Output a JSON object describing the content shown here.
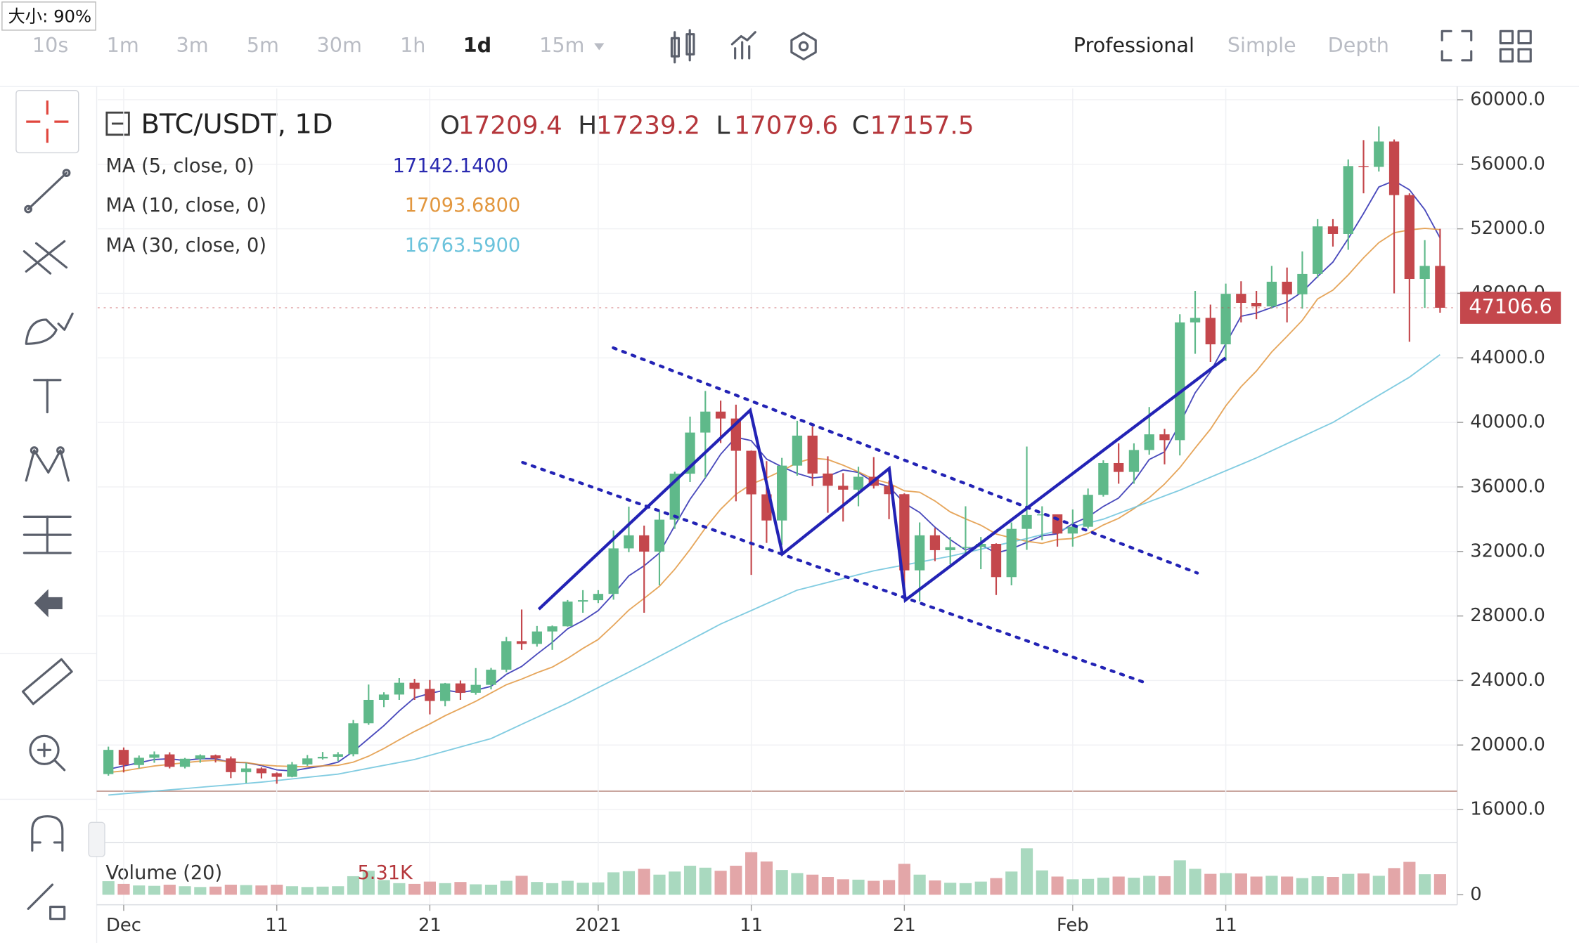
{
  "badge": "大小: 90%",
  "toolbar": {
    "intervals": [
      "10s",
      "1m",
      "3m",
      "5m",
      "30m",
      "1h",
      "1d",
      "15m"
    ],
    "active_interval_index": 6,
    "views": [
      "Professional",
      "Simple",
      "Depth"
    ],
    "active_view_index": 0
  },
  "chart_data": {
    "type": "candlestick",
    "title": "BTC/USDT, 1D",
    "ohlc_labels": [
      "O",
      "H",
      "L",
      "C"
    ],
    "ohlc_values": [
      17209.4,
      17239.2,
      17079.6,
      17157.5
    ],
    "up_color": "#5fb98a",
    "down_color": "#c4474c",
    "label_color": "#b5373c",
    "open": [
      18200,
      19700,
      18760,
      19210,
      19420,
      18650,
      19150,
      19360,
      19170,
      18320,
      18550,
      18250,
      18030,
      18800,
      19170,
      19270,
      19430,
      21350,
      22800,
      23130,
      23860,
      23480,
      22730,
      23820,
      23240,
      23730,
      24670,
      26440,
      26270,
      27040,
      27360,
      28890,
      28980,
      29370,
      32190,
      33000,
      31990,
      33970,
      36820,
      39370,
      40670,
      40240,
      38240,
      35540,
      33920,
      37320,
      39180,
      36830,
      36070,
      35830,
      36630,
      36070,
      35550,
      30830,
      33000,
      32080,
      32260,
      32280,
      32470,
      30410,
      33400,
      34260,
      34300,
      33110,
      33530,
      35510,
      37480,
      36930,
      38290,
      39260,
      38900,
      46200,
      46480,
      44840,
      47970,
      47410,
      47190,
      48720,
      47940,
      49200,
      52150,
      51680,
      55890,
      55840,
      57410,
      54090,
      48890,
      49700
    ],
    "high": [
      19900,
      19850,
      19350,
      19600,
      19550,
      19200,
      19420,
      19410,
      19290,
      18900,
      18620,
      18300,
      18950,
      19380,
      19570,
      19560,
      21550,
      23750,
      23270,
      24150,
      24100,
      24030,
      23850,
      24000,
      24770,
      24780,
      26700,
      28400,
      27380,
      27410,
      28990,
      29600,
      29600,
      33300,
      34780,
      33600,
      34500,
      36940,
      40360,
      41950,
      41350,
      41100,
      38260,
      37600,
      37800,
      40100,
      39750,
      37900,
      36850,
      37250,
      37850,
      36400,
      35600,
      33800,
      33450,
      32900,
      34800,
      32900,
      32500,
      33800,
      38500,
      34800,
      34300,
      34600,
      35900,
      37650,
      38700,
      38700,
      40950,
      39600,
      46700,
      48150,
      47300,
      48600,
      48750,
      48150,
      49700,
      49600,
      50600,
      52600,
      52600,
      56300,
      57500,
      58350,
      57540,
      54200,
      51300,
      52000
    ],
    "low": [
      18100,
      18300,
      18550,
      18900,
      18550,
      18550,
      18900,
      18920,
      17950,
      17650,
      17930,
      17600,
      18000,
      18710,
      19100,
      19000,
      19300,
      21250,
      22350,
      22800,
      22800,
      21900,
      22400,
      22800,
      23120,
      23450,
      24520,
      25900,
      26100,
      25900,
      27340,
      28200,
      28800,
      29010,
      31950,
      28200,
      29900,
      33400,
      36300,
      36570,
      38720,
      35110,
      30550,
      32530,
      32400,
      36700,
      36050,
      34400,
      33850,
      34800,
      35900,
      34000,
      29280,
      28900,
      31400,
      31200,
      31900,
      30900,
      29300,
      29900,
      32100,
      32700,
      32300,
      32300,
      33420,
      35400,
      36200,
      36200,
      38000,
      37400,
      37950,
      44250,
      43750,
      43800,
      46200,
      46400,
      47050,
      46200,
      47050,
      48950,
      50900,
      50700,
      54200,
      55550,
      48000,
      45000,
      47100,
      46800
    ],
    "close": [
      19700,
      18760,
      19210,
      19420,
      18650,
      19150,
      19360,
      19170,
      18320,
      18550,
      18250,
      18030,
      18800,
      19170,
      19270,
      19430,
      21350,
      22800,
      23130,
      23860,
      23480,
      22730,
      23820,
      23240,
      23730,
      24670,
      26440,
      26270,
      27040,
      27360,
      28890,
      28980,
      29370,
      32190,
      33000,
      31990,
      33970,
      36820,
      39370,
      40670,
      40240,
      38240,
      35540,
      33920,
      37320,
      39180,
      36830,
      36070,
      35830,
      36630,
      36070,
      35550,
      30830,
      33000,
      32080,
      32260,
      32280,
      32470,
      30410,
      33400,
      34260,
      34300,
      33110,
      33530,
      35510,
      37480,
      36930,
      38290,
      39260,
      38900,
      46200,
      46480,
      44840,
      47970,
      47410,
      47190,
      48720,
      47940,
      49200,
      52150,
      51680,
      55890,
      55840,
      57410,
      54090,
      48890,
      49700,
      47106.6
    ],
    "moving_averages": [
      {
        "name": "MA (5, close, 0)",
        "value": {
          "value": 17142.14,
          "label": "17142.1400"
        },
        "color": "#2a2ab0",
        "values": [
          18500,
          18700,
          18900,
          19100,
          19150,
          19040,
          19160,
          19150,
          18930,
          18910,
          18730,
          18460,
          18390,
          18560,
          18700,
          18940,
          19600,
          20400,
          21200,
          22110,
          22930,
          23200,
          23400,
          23260,
          23400,
          23640,
          24380,
          24870,
          25630,
          26360,
          27200,
          27710,
          28330,
          29360,
          30490,
          31110,
          31900,
          33590,
          35230,
          36560,
          38020,
          39080,
          38870,
          37730,
          37250,
          36840,
          36560,
          36660,
          37050,
          36900,
          36290,
          36030,
          34990,
          34420,
          33510,
          32740,
          32090,
          32420,
          31900,
          32160,
          32560,
          32970,
          33100,
          33720,
          34140,
          34790,
          35310,
          36350,
          37700,
          38170,
          39910,
          41830,
          43140,
          44880,
          46580,
          46780,
          47120,
          47450,
          48090,
          49040,
          49940,
          51390,
          52950,
          54590,
          54980,
          54420,
          53190,
          51440
        ]
      },
      {
        "name": "MA (10, close, 0)",
        "value": {
          "value": 17093.68,
          "label": "17093.6800"
        },
        "color": "#e2973f",
        "values": [
          18300,
          18400,
          18550,
          18700,
          18800,
          18900,
          19000,
          19050,
          18950,
          18910,
          18770,
          18700,
          18670,
          18650,
          18710,
          18740,
          18940,
          19310,
          19790,
          20320,
          20840,
          21310,
          21820,
          22260,
          22710,
          23230,
          23740,
          24090,
          24480,
          24830,
          25370,
          25990,
          26540,
          27430,
          28360,
          29090,
          29840,
          30890,
          32120,
          33450,
          34610,
          35540,
          36170,
          36560,
          37000,
          37500,
          37780,
          37700,
          37350,
          36940,
          36480,
          36230,
          35760,
          35670,
          35130,
          34450,
          34020,
          33630,
          33080,
          32840,
          32630,
          32500,
          32740,
          32800,
          33120,
          33640,
          34050,
          34650,
          35330,
          36180,
          37190,
          38410,
          39580,
          41020,
          42210,
          43180,
          44360,
          45330,
          46320,
          47650,
          48200,
          49140,
          50200,
          51140,
          51760,
          51930,
          52030,
          51950
        ]
      },
      {
        "name": "MA (30, close, 0)",
        "value": {
          "value": 16763.59,
          "label": "16763.5900"
        },
        "color": "#6cc3dc",
        "values": [
          16900,
          16980,
          17060,
          17140,
          17220,
          17300,
          17380,
          17460,
          17540,
          17620,
          17700,
          17800,
          17900,
          18000,
          18100,
          18200,
          18380,
          18560,
          18740,
          18920,
          19100,
          19360,
          19620,
          19880,
          20140,
          20400,
          20840,
          21280,
          21720,
          22160,
          22600,
          23080,
          23560,
          24040,
          24520,
          25000,
          25500,
          26000,
          26500,
          27000,
          27500,
          27920,
          28340,
          28760,
          29180,
          29600,
          29840,
          30080,
          30320,
          30560,
          30800,
          30980,
          31160,
          31340,
          31520,
          31700,
          31920,
          32140,
          32360,
          32580,
          32800,
          33040,
          33280,
          33520,
          33760,
          34000,
          34360,
          34720,
          35080,
          35440,
          35800,
          36200,
          36600,
          37000,
          37400,
          37800,
          38240,
          38680,
          39120,
          39560,
          40000,
          40560,
          41120,
          41680,
          42240,
          42800,
          43500,
          44200
        ]
      }
    ],
    "ylim": [
      13960,
      60700
    ],
    "yticks": [
      {
        "value": 60000,
        "label": "60000.0"
      },
      {
        "value": 56000,
        "label": "56000.0"
      },
      {
        "value": 52000,
        "label": "52000.0"
      },
      {
        "value": 48000,
        "label": "48000.0"
      },
      {
        "value": 44000,
        "label": "44000.0"
      },
      {
        "value": 40000,
        "label": "40000.0"
      },
      {
        "value": 36000,
        "label": "36000.0"
      },
      {
        "value": 32000,
        "label": "32000.0"
      },
      {
        "value": 28000,
        "label": "28000.0"
      },
      {
        "value": 24000,
        "label": "24000.0"
      },
      {
        "value": 20000,
        "label": "20000.0"
      },
      {
        "value": 16000,
        "label": "16000.0"
      }
    ],
    "xlim": [
      -0.7,
      88.05
    ],
    "xticks": [
      {
        "value": 1,
        "label": "Dec"
      },
      {
        "value": 11,
        "label": "11"
      },
      {
        "value": 21,
        "label": "21"
      },
      {
        "value": 32,
        "label": "2021"
      },
      {
        "value": 42,
        "label": "11"
      },
      {
        "value": 52,
        "label": "21"
      },
      {
        "value": 63,
        "label": "Feb"
      },
      {
        "value": 73,
        "label": "11"
      }
    ],
    "grid": true,
    "volume": {
      "title": "Volume (20)",
      "readout": {
        "value": 5310,
        "label": "5.31K"
      },
      "up_color": "#a9d9bf",
      "down_color": "#e3a6a8",
      "values": [
        3500,
        2800,
        2400,
        2300,
        2600,
        2200,
        2000,
        2100,
        2600,
        2500,
        2400,
        2600,
        2200,
        2000,
        2100,
        2200,
        4800,
        6200,
        3800,
        3000,
        2800,
        3400,
        3000,
        3300,
        2700,
        2600,
        3600,
        4900,
        3300,
        3000,
        3600,
        3100,
        3200,
        5800,
        6100,
        6700,
        5200,
        6000,
        7500,
        7000,
        6200,
        7500,
        11000,
        8600,
        6400,
        5600,
        5200,
        4600,
        4000,
        3900,
        3600,
        3800,
        8000,
        5200,
        3700,
        3100,
        3000,
        3400,
        4300,
        6000,
        12000,
        6300,
        4700,
        4000,
        4100,
        4400,
        4700,
        4400,
        4900,
        4800,
        8900,
        6700,
        5400,
        5600,
        5500,
        4700,
        4900,
        4700,
        4300,
        4800,
        4600,
        5400,
        5500,
        4900,
        6900,
        8500,
        5300,
        5310
      ],
      "ylim": [
        0,
        13000
      ],
      "yticks": [
        0
      ]
    }
  }
}
